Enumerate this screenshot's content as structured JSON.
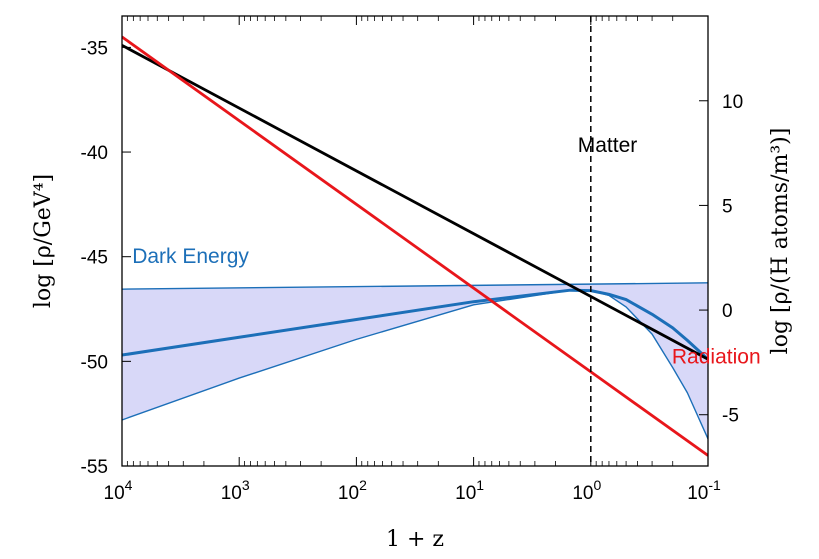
{
  "chart_data": {
    "type": "line",
    "xlabel": "1 + z",
    "ylabel": "log [ρ/GeV⁴]",
    "ylabel_right": "log [ρ/(H atoms/m³)]",
    "x_scale": "log",
    "x_reversed": true,
    "xlim": [
      10000,
      0.1
    ],
    "ylim": [
      -55,
      -33.5
    ],
    "ylim_right": [
      -7.45,
      14.05
    ],
    "x_ticks": [
      {
        "value": 10000,
        "base": "10",
        "exp": "4"
      },
      {
        "value": 1000,
        "base": "10",
        "exp": "3"
      },
      {
        "value": 100,
        "base": "10",
        "exp": "2"
      },
      {
        "value": 10,
        "base": "10",
        "exp": "1"
      },
      {
        "value": 1,
        "base": "10",
        "exp": "0"
      },
      {
        "value": 0.1,
        "base": "10",
        "exp": "-1"
      }
    ],
    "y_ticks": [
      "-35",
      "-40",
      "-45",
      "-50",
      "-55"
    ],
    "y_ticks_right": [
      "10",
      "5",
      "0",
      "-5"
    ],
    "vline": {
      "x": 1,
      "style": "dashed"
    },
    "series": [
      {
        "name": "Matter",
        "color": "#000000",
        "x": [
          10000,
          0.1
        ],
        "y": [
          -34.9,
          -49.9
        ]
      },
      {
        "name": "Radiation",
        "color": "#e8161b",
        "x": [
          10000,
          0.1
        ],
        "y": [
          -34.5,
          -54.5
        ]
      },
      {
        "name": "Dark Energy",
        "color": "#1c6fb8",
        "x": [
          10000,
          1000,
          100,
          10,
          1.5,
          1,
          0.7,
          0.5,
          0.3,
          0.2,
          0.15,
          0.1
        ],
        "y": [
          -49.7,
          -48.85,
          -48.0,
          -47.15,
          -46.6,
          -46.62,
          -46.8,
          -47.05,
          -47.75,
          -48.4,
          -49.0,
          -49.9
        ]
      },
      {
        "color": "#1c6fb8",
        "x": [
          10000,
          0.1
        ],
        "y": [
          -46.55,
          -46.25
        ]
      },
      {
        "color": "#1c6fb8",
        "x": [
          10000,
          1000,
          100,
          10,
          1.5,
          1,
          0.7,
          0.5,
          0.3,
          0.2,
          0.15,
          0.1
        ],
        "y": [
          -52.8,
          -50.8,
          -48.95,
          -47.3,
          -46.6,
          -46.6,
          -46.85,
          -47.4,
          -48.7,
          -50.3,
          -51.5,
          -53.7
        ]
      }
    ],
    "band": {
      "fill": "#d8d8f8",
      "upper": "Dark Energy upper bound",
      "lower": "Dark Energy lower bound"
    },
    "annotations": [
      {
        "text": "Matter",
        "x": 0.72,
        "y": -40.0,
        "color": "#000000"
      },
      {
        "text": "Radiation",
        "x": 0.085,
        "y": -50.1,
        "color": "#e8161b"
      },
      {
        "text": "Dark Energy",
        "x": 2600,
        "y": -45.3,
        "color": "#1c6fb8"
      }
    ]
  }
}
